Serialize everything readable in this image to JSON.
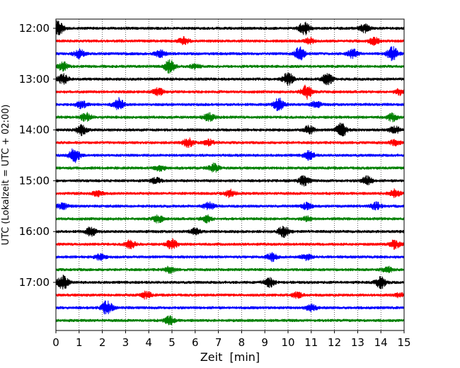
{
  "chart_data": {
    "type": "line",
    "title": "",
    "xlabel": "Zeit  [min]",
    "ylabel": "UTC (Lokalzeit = UTC + 02:00)",
    "xlim": [
      0,
      15
    ],
    "x_ticks": [
      "0",
      "1",
      "2",
      "3",
      "4",
      "5",
      "6",
      "7",
      "8",
      "9",
      "10",
      "11",
      "12",
      "13",
      "14",
      "15"
    ],
    "y_time_range": [
      "12:00",
      "17:45"
    ],
    "y_tick_labels": [
      "12:00",
      "13:00",
      "14:00",
      "15:00",
      "16:00",
      "17:00"
    ],
    "grid": "vertical dotted lines at each minute",
    "trace_interval_minutes": 15,
    "color_cycle": [
      "#000000",
      "#ff0000",
      "#0000ff",
      "#008000"
    ],
    "series": [
      {
        "start": "12:00",
        "bursts": [
          [
            0.1,
            1.0
          ],
          [
            10.7,
            1.0
          ],
          [
            13.3,
            0.6
          ]
        ]
      },
      {
        "start": "12:15",
        "bursts": [
          [
            5.5,
            0.5
          ],
          [
            10.9,
            0.4
          ],
          [
            13.7,
            0.5
          ]
        ]
      },
      {
        "start": "12:30",
        "bursts": [
          [
            1.0,
            0.6
          ],
          [
            4.5,
            0.5
          ],
          [
            10.5,
            0.9
          ],
          [
            12.8,
            0.6
          ],
          [
            14.5,
            1.0
          ]
        ]
      },
      {
        "start": "12:45",
        "bursts": [
          [
            0.3,
            0.6
          ],
          [
            4.9,
            0.9
          ],
          [
            6.0,
            0.3
          ]
        ]
      },
      {
        "start": "13:00",
        "bursts": [
          [
            0.3,
            0.7
          ],
          [
            10.0,
            0.9
          ],
          [
            11.7,
            0.8
          ]
        ]
      },
      {
        "start": "13:15",
        "bursts": [
          [
            4.4,
            0.5
          ],
          [
            10.8,
            1.0
          ],
          [
            14.8,
            0.4
          ]
        ]
      },
      {
        "start": "13:30",
        "bursts": [
          [
            1.1,
            0.5
          ],
          [
            2.7,
            0.9
          ],
          [
            9.6,
            0.9
          ],
          [
            11.2,
            0.4
          ]
        ]
      },
      {
        "start": "13:45",
        "bursts": [
          [
            1.3,
            0.6
          ],
          [
            6.6,
            0.6
          ],
          [
            14.5,
            0.5
          ]
        ]
      },
      {
        "start": "14:00",
        "bursts": [
          [
            1.1,
            0.7
          ],
          [
            10.9,
            0.6
          ],
          [
            12.3,
            1.0
          ],
          [
            14.6,
            0.5
          ]
        ]
      },
      {
        "start": "14:15",
        "bursts": [
          [
            5.7,
            0.6
          ],
          [
            6.6,
            0.4
          ],
          [
            14.6,
            0.4
          ]
        ]
      },
      {
        "start": "14:30",
        "bursts": [
          [
            0.8,
            1.0
          ],
          [
            10.9,
            0.6
          ]
        ]
      },
      {
        "start": "14:45",
        "bursts": [
          [
            4.5,
            0.4
          ],
          [
            6.8,
            0.6
          ]
        ]
      },
      {
        "start": "15:00",
        "bursts": [
          [
            4.3,
            0.4
          ],
          [
            10.7,
            0.7
          ],
          [
            13.4,
            0.6
          ]
        ]
      },
      {
        "start": "15:15",
        "bursts": [
          [
            1.8,
            0.4
          ],
          [
            7.5,
            0.5
          ],
          [
            14.6,
            0.6
          ]
        ]
      },
      {
        "start": "15:30",
        "bursts": [
          [
            0.3,
            0.4
          ],
          [
            6.6,
            0.5
          ],
          [
            10.8,
            0.5
          ],
          [
            13.8,
            0.5
          ]
        ]
      },
      {
        "start": "15:45",
        "bursts": [
          [
            4.4,
            0.5
          ],
          [
            6.5,
            0.5
          ],
          [
            10.8,
            0.3
          ]
        ]
      },
      {
        "start": "16:00",
        "bursts": [
          [
            1.5,
            0.6
          ],
          [
            6.0,
            0.4
          ],
          [
            9.8,
            0.8
          ]
        ]
      },
      {
        "start": "16:15",
        "bursts": [
          [
            3.2,
            0.6
          ],
          [
            5.0,
            0.7
          ],
          [
            14.6,
            0.6
          ]
        ]
      },
      {
        "start": "16:30",
        "bursts": [
          [
            1.9,
            0.4
          ],
          [
            9.3,
            0.6
          ],
          [
            10.8,
            0.4
          ]
        ]
      },
      {
        "start": "16:45",
        "bursts": [
          [
            4.9,
            0.4
          ],
          [
            14.3,
            0.4
          ]
        ]
      },
      {
        "start": "17:00",
        "bursts": [
          [
            0.3,
            1.0
          ],
          [
            9.2,
            0.6
          ],
          [
            14.0,
            0.8
          ]
        ]
      },
      {
        "start": "17:15",
        "bursts": [
          [
            3.9,
            0.5
          ],
          [
            10.4,
            0.4
          ],
          [
            14.8,
            0.3
          ]
        ]
      },
      {
        "start": "17:30",
        "bursts": [
          [
            2.2,
            1.0
          ],
          [
            11.0,
            0.5
          ]
        ]
      },
      {
        "start": "17:45",
        "bursts": [
          [
            4.9,
            0.6
          ]
        ]
      }
    ]
  }
}
